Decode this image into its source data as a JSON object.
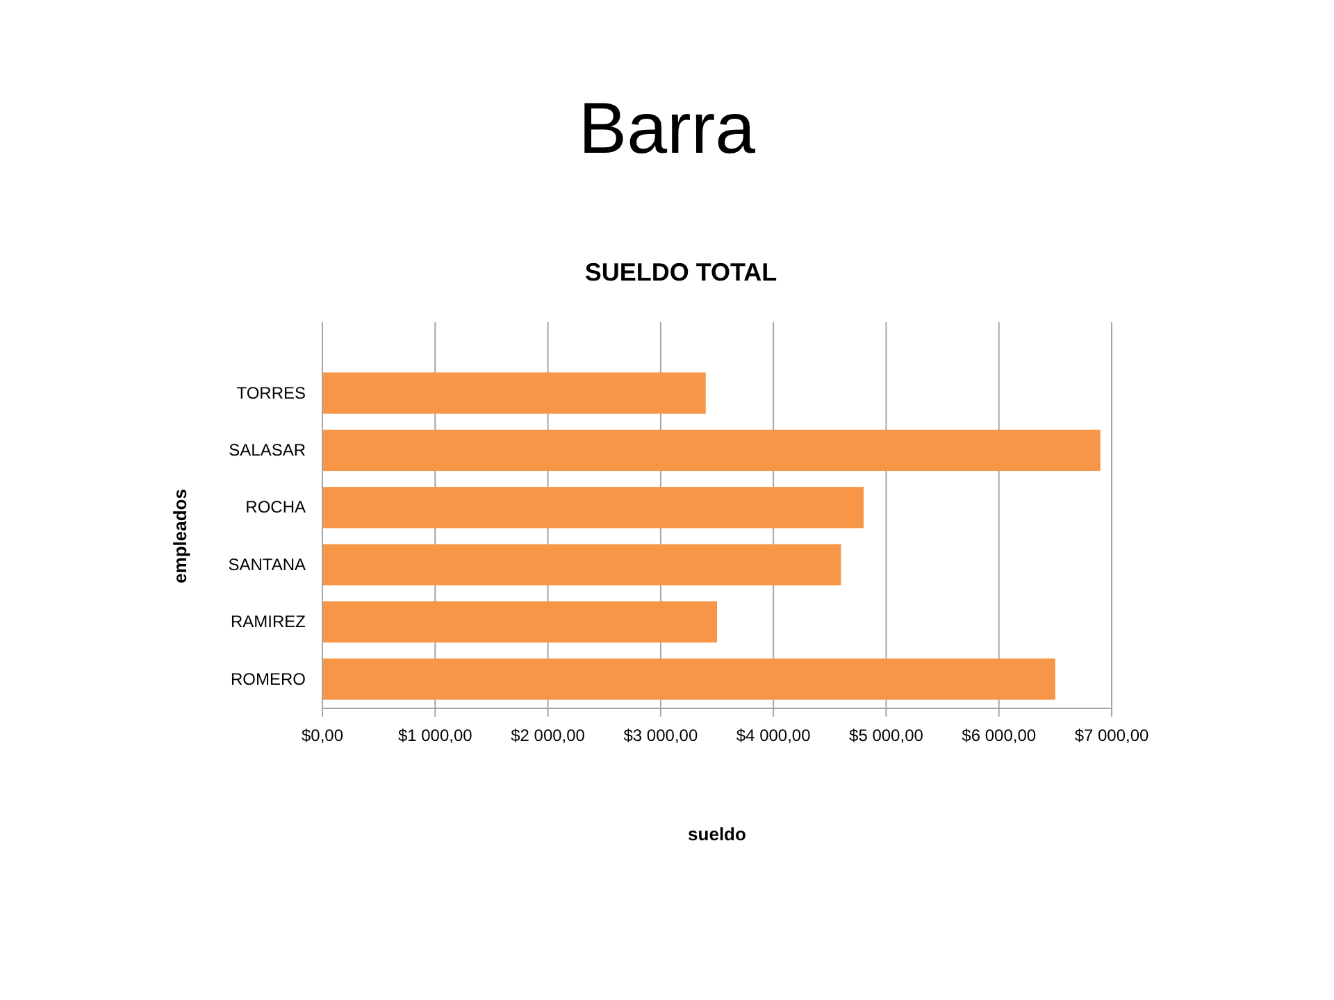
{
  "chart_data": {
    "type": "bar",
    "orientation": "horizontal",
    "title": "Barra",
    "subtitle": "SUELDO TOTAL",
    "xlabel": "sueldo",
    "ylabel": "empleados",
    "categories": [
      "TORRES",
      "SALASAR",
      "ROCHA",
      "SANTANA",
      "RAMIREZ",
      "ROMERO"
    ],
    "values": [
      3400,
      6900,
      4800,
      4600,
      3500,
      6500
    ],
    "color": "#f79646",
    "xlim": [
      0,
      7000
    ],
    "xticks": [
      {
        "value": 0,
        "label": "$0,00"
      },
      {
        "value": 1000,
        "label": "$1 000,00"
      },
      {
        "value": 2000,
        "label": "$2 000,00"
      },
      {
        "value": 3000,
        "label": "$3 000,00"
      },
      {
        "value": 4000,
        "label": "$4 000,00"
      },
      {
        "value": 5000,
        "label": "$5 000,00"
      },
      {
        "value": 6000,
        "label": "$6 000,00"
      },
      {
        "value": 7000,
        "label": "$7 000,00"
      }
    ],
    "grid": "x"
  }
}
